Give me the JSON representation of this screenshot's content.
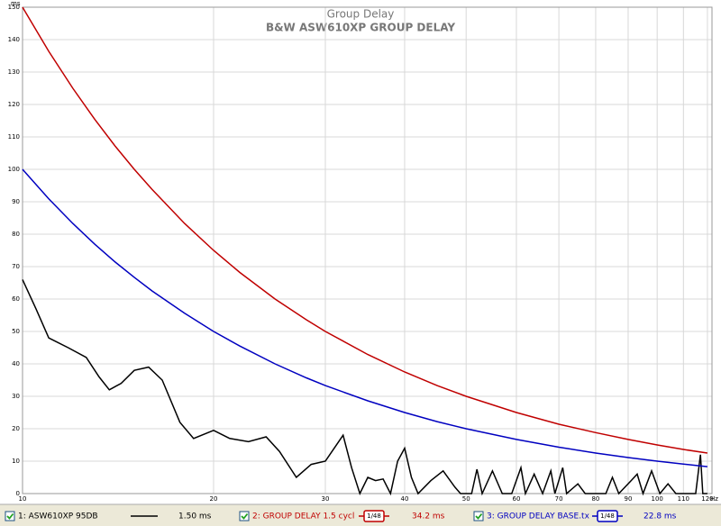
{
  "chart_data": {
    "type": "line",
    "title": "Group Delay",
    "subtitle": "B&W ASW610XP GROUP DELAY",
    "y_label": "ms",
    "x_label": "Hz",
    "log_x": true,
    "grid": true,
    "xlim": [
      10,
      122
    ],
    "ylim": [
      0,
      150
    ],
    "xticks": [
      10,
      20,
      30,
      40,
      50,
      60,
      70,
      80,
      90,
      100,
      110,
      120
    ],
    "yticks": [
      0,
      10,
      20,
      30,
      40,
      50,
      60,
      70,
      80,
      90,
      100,
      110,
      120,
      130,
      140,
      150
    ],
    "series": [
      {
        "name": "1: ASW610XP 95DB",
        "color": "#000000",
        "readout": "1.50 ms",
        "x": [
          10,
          10.5,
          11,
          11.8,
          12.6,
          13.2,
          13.7,
          14.3,
          15,
          15.8,
          16.6,
          17.7,
          18.6,
          20,
          21.2,
          22.7,
          24.2,
          25.4,
          27,
          28.5,
          30,
          32,
          33,
          34,
          35,
          36,
          37,
          38,
          39,
          40,
          41,
          42,
          44,
          46,
          48,
          49,
          51,
          52,
          53,
          55,
          57,
          59,
          61,
          62,
          64,
          66,
          68,
          69,
          71,
          72,
          75,
          77,
          80,
          83,
          85,
          87,
          91,
          93,
          95,
          98,
          101,
          104,
          107,
          115,
          117,
          118,
          120
        ],
        "values": [
          66,
          57,
          48,
          45,
          42,
          36,
          32,
          34,
          38,
          39,
          35,
          22,
          17,
          19.5,
          17,
          16,
          17.5,
          13,
          5,
          9,
          10,
          18,
          8,
          0,
          5,
          4,
          4.5,
          0,
          10,
          14,
          5,
          0,
          4,
          7,
          2,
          0,
          0,
          7.5,
          0,
          7,
          0,
          0,
          8,
          0,
          6,
          0,
          7,
          0,
          8,
          0,
          3,
          0,
          0,
          0,
          5,
          0,
          4,
          6,
          0,
          7,
          0,
          3,
          0,
          0,
          12,
          0,
          0
        ]
      },
      {
        "name": "2: GROUP DELAY 1.5 cycl",
        "color": "#c00000",
        "readout": "34.2 ms",
        "smoothing": "1/48",
        "x": [
          10,
          11,
          12,
          13,
          14,
          15,
          16,
          18,
          20,
          22,
          25,
          28,
          30,
          35,
          40,
          45,
          50,
          60,
          70,
          80,
          90,
          100,
          110,
          120
        ],
        "values": [
          150,
          136.4,
          125,
          115.4,
          107.1,
          100,
          93.8,
          83.3,
          75,
          68.2,
          60,
          53.6,
          50,
          42.9,
          37.5,
          33.3,
          30,
          25,
          21.4,
          18.8,
          16.7,
          15,
          13.6,
          12.5
        ]
      },
      {
        "name": "3: GROUP DELAY BASE.tx",
        "color": "#0000c0",
        "readout": "22.8 ms",
        "smoothing": "1/48",
        "x": [
          10,
          11,
          12,
          13,
          14,
          15,
          16,
          18,
          20,
          22,
          25,
          28,
          30,
          35,
          40,
          45,
          50,
          60,
          70,
          80,
          90,
          100,
          110,
          120
        ],
        "values": [
          100,
          90.9,
          83.3,
          76.9,
          71.4,
          66.7,
          62.5,
          55.6,
          50,
          45.5,
          40,
          35.7,
          33.3,
          28.6,
          25,
          22.2,
          20,
          16.7,
          14.3,
          12.5,
          11.1,
          10,
          9.1,
          8.3
        ]
      }
    ]
  }
}
